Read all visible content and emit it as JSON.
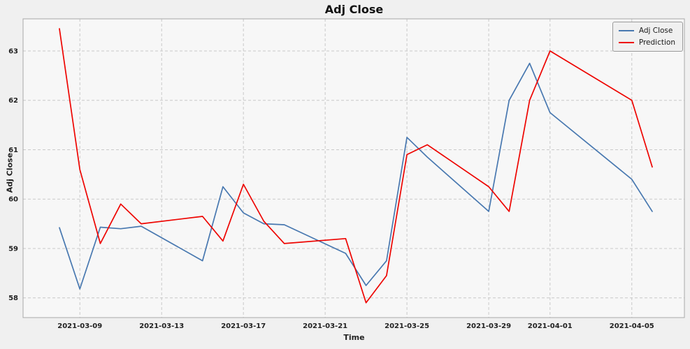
{
  "figure": {
    "title": "Adj Close",
    "xlabel": "Time",
    "ylabel": "Adj Close",
    "background_color": "#f0f0f0",
    "plot_background_color": "#f7f7f7",
    "grid_color": "#c9c9c9",
    "border_color": "#a8a8a8",
    "tick_color": "#222222"
  },
  "legend": {
    "position": "upper right",
    "items": [
      {
        "label": "Adj Close",
        "color": "#4878b0"
      },
      {
        "label": "Prediction",
        "color": "#ee0400"
      }
    ]
  },
  "chart_data": {
    "type": "line",
    "title": "Adj Close",
    "xlabel": "Time",
    "ylabel": "Adj Close",
    "grid": true,
    "legend_position": "upper right",
    "ylim": [
      57.6,
      63.65
    ],
    "yticks": [
      58,
      59,
      60,
      61,
      62,
      63
    ],
    "xtick_labels": [
      "2021-03-09",
      "2021-03-13",
      "2021-03-17",
      "2021-03-21",
      "2021-03-25",
      "2021-03-29",
      "2021-04-01",
      "2021-04-05"
    ],
    "x": [
      "2021-03-08",
      "2021-03-09",
      "2021-03-10",
      "2021-03-11",
      "2021-03-12",
      "2021-03-15",
      "2021-03-16",
      "2021-03-17",
      "2021-03-18",
      "2021-03-19",
      "2021-03-22",
      "2021-03-23",
      "2021-03-24",
      "2021-03-25",
      "2021-03-26",
      "2021-03-29",
      "2021-03-30",
      "2021-03-31",
      "2021-04-01",
      "2021-04-05",
      "2021-04-06"
    ],
    "series": [
      {
        "name": "Adj Close",
        "color": "#4878b0",
        "values": [
          59.42,
          58.18,
          59.43,
          59.4,
          59.45,
          58.75,
          60.25,
          59.72,
          59.5,
          59.48,
          58.9,
          58.25,
          58.75,
          61.25,
          60.85,
          59.75,
          62.0,
          62.75,
          61.75,
          60.4,
          59.75
        ]
      },
      {
        "name": "Prediction",
        "color": "#ee0400",
        "values": [
          63.45,
          60.6,
          59.1,
          59.9,
          59.5,
          59.65,
          59.15,
          60.3,
          59.55,
          59.1,
          59.2,
          57.9,
          58.45,
          60.9,
          61.1,
          60.25,
          59.75,
          62.0,
          63.0,
          62.0,
          60.65
        ]
      }
    ]
  }
}
